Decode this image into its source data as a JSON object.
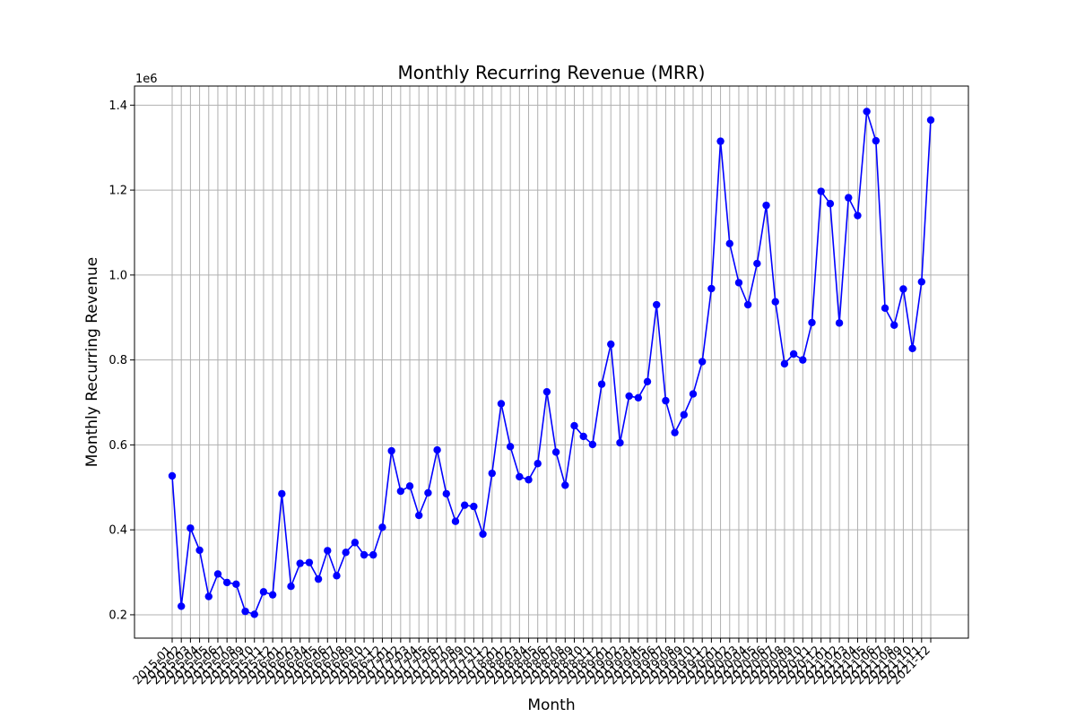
{
  "chart_data": {
    "type": "line",
    "title": "Monthly Recurring Revenue (MRR)",
    "xlabel": "Month",
    "ylabel": "Monthly Recurring Revenue",
    "y_offset_label": "1e6",
    "ylim": [
      0.145,
      1.445
    ],
    "yticks": [
      0.2,
      0.4,
      0.6,
      0.8,
      1.0,
      1.2,
      1.4
    ],
    "ytick_labels": [
      "0.2",
      "0.4",
      "0.6",
      "0.8",
      "1.0",
      "1.2",
      "1.4"
    ],
    "grid": true,
    "line_color": "#0000ff",
    "x": [
      "2015-01",
      "2015-02",
      "2015-03",
      "2015-04",
      "2015-05",
      "2015-06",
      "2015-07",
      "2015-08",
      "2015-09",
      "2015-10",
      "2015-11",
      "2015-12",
      "2016-01",
      "2016-02",
      "2016-03",
      "2016-04",
      "2016-05",
      "2016-06",
      "2016-07",
      "2016-08",
      "2016-09",
      "2016-10",
      "2016-11",
      "2016-12",
      "2017-01",
      "2017-02",
      "2017-03",
      "2017-04",
      "2017-05",
      "2017-06",
      "2017-07",
      "2017-08",
      "2017-09",
      "2017-10",
      "2017-11",
      "2017-12",
      "2018-01",
      "2018-02",
      "2018-03",
      "2018-04",
      "2018-05",
      "2018-06",
      "2018-07",
      "2018-08",
      "2018-09",
      "2018-10",
      "2018-11",
      "2018-12",
      "2019-01",
      "2019-02",
      "2019-03",
      "2019-04",
      "2019-05",
      "2019-06",
      "2019-07",
      "2019-08",
      "2019-09",
      "2019-10",
      "2019-11",
      "2019-12",
      "2020-01",
      "2020-02",
      "2020-03",
      "2020-04",
      "2020-05",
      "2020-06",
      "2020-07",
      "2020-08",
      "2020-09",
      "2020-10",
      "2020-11",
      "2020-12",
      "2021-01",
      "2021-02",
      "2021-03",
      "2021-04",
      "2021-05",
      "2021-06",
      "2021-07",
      "2021-08",
      "2021-09",
      "2021-10",
      "2021-11",
      "2021-12"
    ],
    "series": [
      {
        "values": [
          0.527,
          0.22,
          0.404,
          0.352,
          0.243,
          0.296,
          0.276,
          0.272,
          0.208,
          0.201,
          0.254,
          0.247,
          0.485,
          0.267,
          0.321,
          0.323,
          0.284,
          0.351,
          0.292,
          0.347,
          0.37,
          0.341,
          0.341,
          0.406,
          0.586,
          0.491,
          0.503,
          0.434,
          0.487,
          0.588,
          0.485,
          0.42,
          0.458,
          0.455,
          0.39,
          0.533,
          0.697,
          0.596,
          0.525,
          0.518,
          0.556,
          0.725,
          0.583,
          0.505,
          0.645,
          0.62,
          0.601,
          0.743,
          0.837,
          0.605,
          0.715,
          0.711,
          0.749,
          0.93,
          0.704,
          0.629,
          0.671,
          0.72,
          0.796,
          0.968,
          1.315,
          1.074,
          0.982,
          0.93,
          1.027,
          1.164,
          0.937,
          0.791,
          0.814,
          0.8,
          0.888,
          1.197,
          1.168,
          0.887,
          1.182,
          1.14,
          1.385,
          1.316,
          0.922,
          0.882,
          0.967,
          0.827,
          0.984,
          1.365
        ]
      }
    ]
  }
}
